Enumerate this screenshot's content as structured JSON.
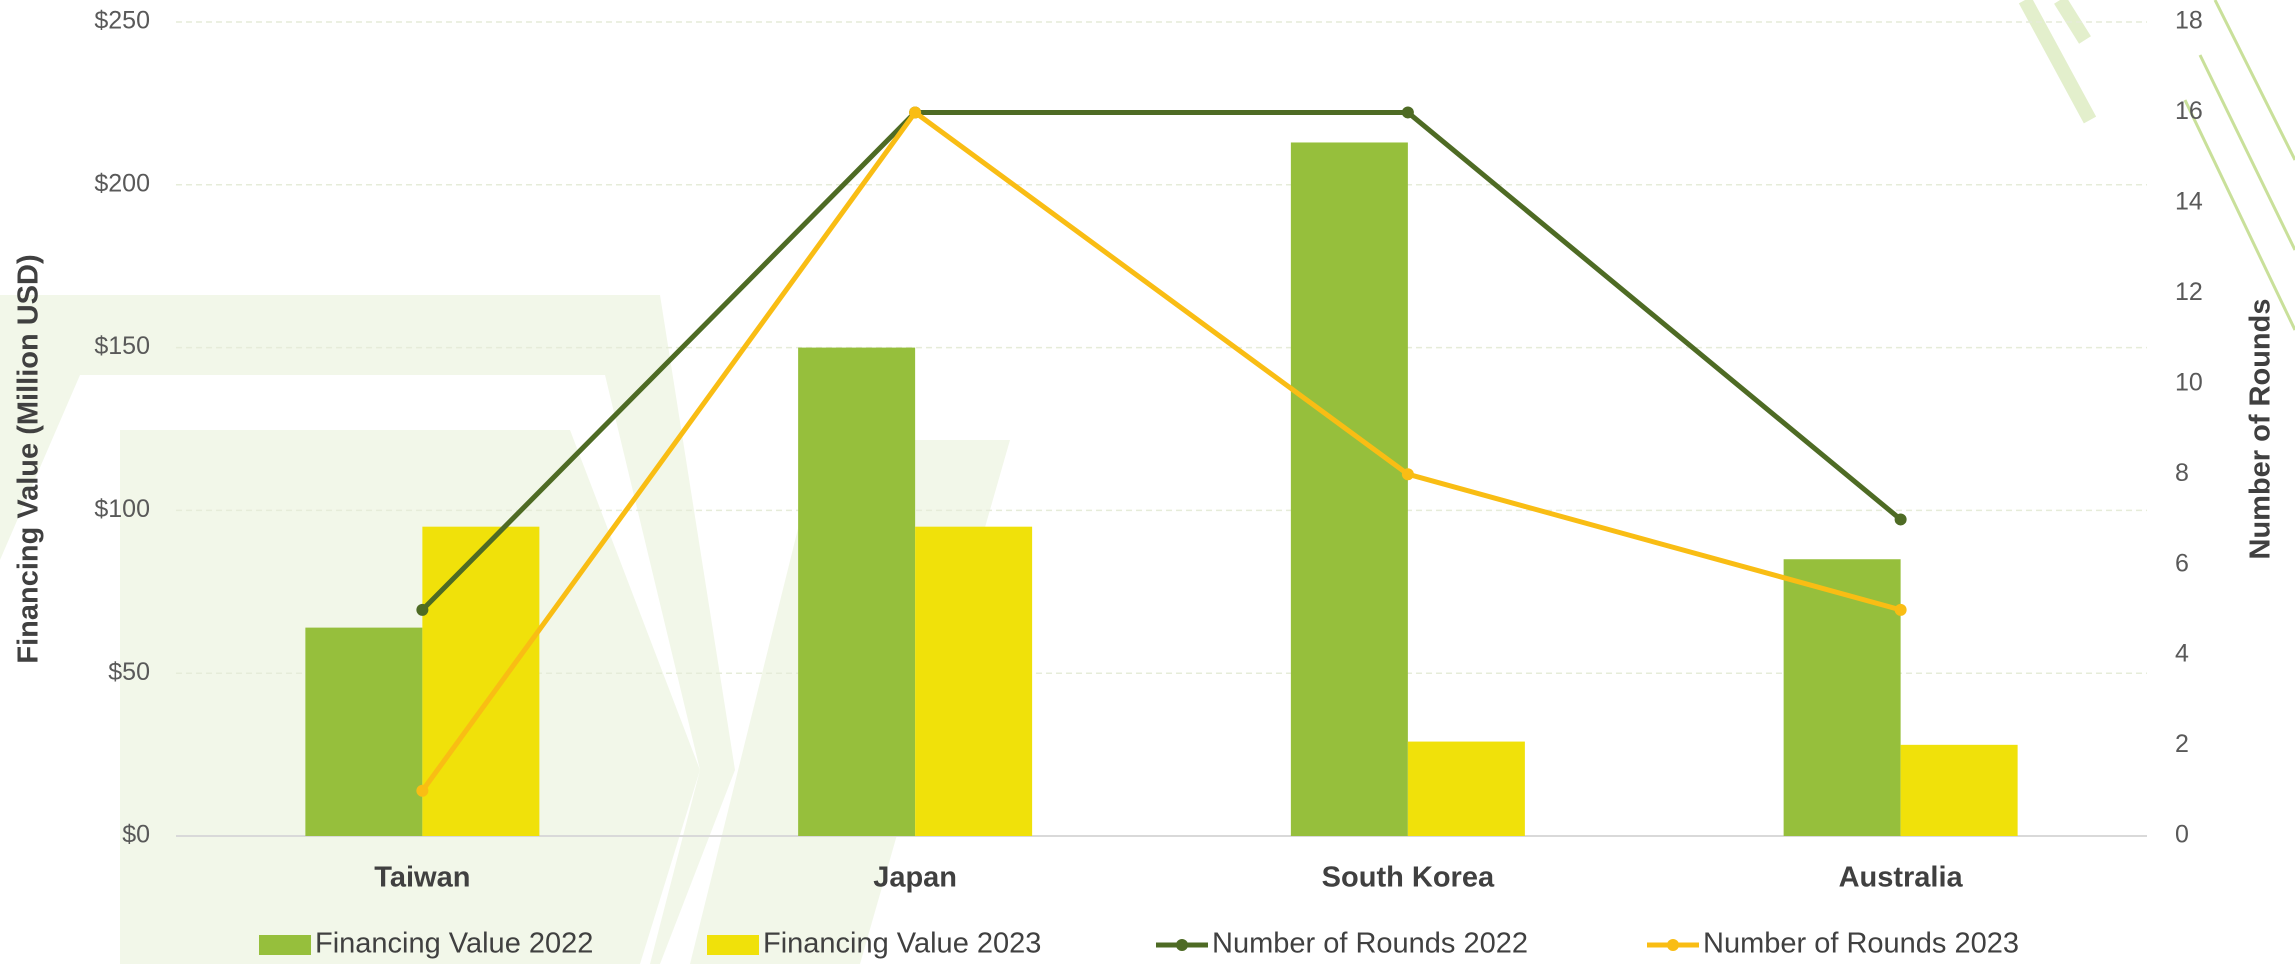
{
  "chart_data": {
    "type": "bar",
    "categories": [
      "Taiwan",
      "Japan",
      "South Korea",
      "Australia"
    ],
    "y_label": "Financing Value (Million USD)",
    "y2_label": "Number of Rounds",
    "series": [
      {
        "name": "Financing Value 2022",
        "type": "bar",
        "color": "#96bf3c",
        "values": [
          64,
          150,
          213,
          85
        ]
      },
      {
        "name": "Financing Value 2023",
        "type": "bar",
        "color": "#f0e10a",
        "values": [
          95,
          95,
          29,
          28
        ]
      },
      {
        "name": "Number of Rounds 2022",
        "type": "line",
        "axis": "y2",
        "color": "#4e6b24",
        "values": [
          5,
          16,
          16,
          7
        ]
      },
      {
        "name": "Number of Rounds 2023",
        "type": "line",
        "axis": "y2",
        "color": "#f9bd14",
        "values": [
          1,
          16,
          8,
          5
        ]
      }
    ],
    "ylim": [
      0,
      250
    ],
    "yticks": [
      {
        "value": 0,
        "label": "$0"
      },
      {
        "value": 50,
        "label": "$50"
      },
      {
        "value": 100,
        "label": "$100"
      },
      {
        "value": 150,
        "label": "$150"
      },
      {
        "value": 200,
        "label": "$200"
      },
      {
        "value": 250,
        "label": "$250"
      }
    ],
    "y2lim": [
      0,
      18
    ],
    "y2ticks": [
      0,
      2,
      4,
      6,
      8,
      10,
      12,
      14,
      16,
      18
    ],
    "grid": true
  }
}
